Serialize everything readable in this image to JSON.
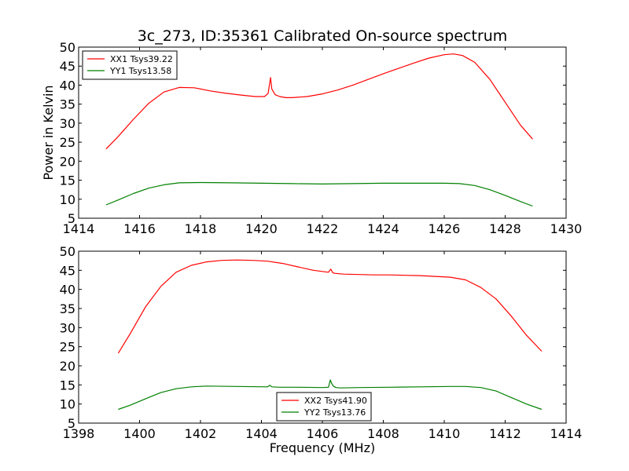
{
  "figure": {
    "title": "3c_273, ID:35361 Calibrated On-source spectrum"
  },
  "chart_data": [
    {
      "type": "line",
      "title": "3c_273, ID:35361 Calibrated On-source spectrum",
      "xlabel": "",
      "ylabel": "Power in Kelvin",
      "xlim": [
        1414,
        1430
      ],
      "ylim": [
        5,
        50
      ],
      "xticks": [
        "1414",
        "1416",
        "1418",
        "1420",
        "1422",
        "1424",
        "1426",
        "1428",
        "1430"
      ],
      "yticks": [
        "5",
        "10",
        "15",
        "20",
        "25",
        "30",
        "35",
        "40",
        "45",
        "50"
      ],
      "grid": false,
      "legend_position": "top-left",
      "series": [
        {
          "name": "XX1 Tsys39.22",
          "color": "#ff0000",
          "x": [
            1414.9,
            1415.3,
            1415.8,
            1416.3,
            1416.8,
            1417.3,
            1417.8,
            1418.3,
            1418.8,
            1419.3,
            1419.8,
            1420.1,
            1420.22,
            1420.3,
            1420.34,
            1420.45,
            1420.6,
            1420.8,
            1421.0,
            1421.5,
            1422.0,
            1422.5,
            1423.0,
            1423.5,
            1424.0,
            1424.5,
            1425.0,
            1425.5,
            1426.0,
            1426.3,
            1426.6,
            1427.0,
            1427.5,
            1428.0,
            1428.5,
            1428.9
          ],
          "y": [
            23.2,
            26.5,
            31,
            35.2,
            38.2,
            39.4,
            39.3,
            38.5,
            37.9,
            37.4,
            37.0,
            37.0,
            37.8,
            42.0,
            39.0,
            37.5,
            37.0,
            36.7,
            36.7,
            37.0,
            37.7,
            38.7,
            40.0,
            41.5,
            43.0,
            44.4,
            45.8,
            47.1,
            48.0,
            48.2,
            47.8,
            46.0,
            41.5,
            35.5,
            29.5,
            25.8
          ]
        },
        {
          "name": "YY1 Tsys13.58",
          "color": "#008000",
          "x": [
            1414.9,
            1415.3,
            1415.8,
            1416.3,
            1416.8,
            1417.3,
            1418.0,
            1419.0,
            1420.0,
            1421.0,
            1422.0,
            1423.0,
            1424.0,
            1425.0,
            1426.0,
            1426.5,
            1427.0,
            1427.5,
            1428.0,
            1428.5,
            1428.9
          ],
          "y": [
            8.5,
            9.8,
            11.5,
            12.9,
            13.8,
            14.3,
            14.4,
            14.3,
            14.2,
            14.1,
            14.0,
            14.1,
            14.2,
            14.2,
            14.2,
            14.1,
            13.6,
            12.5,
            11.0,
            9.4,
            8.2
          ]
        }
      ]
    },
    {
      "type": "line",
      "title": "",
      "xlabel": "Frequency (MHz)",
      "ylabel": "",
      "xlim": [
        1398,
        1414
      ],
      "ylim": [
        5,
        50
      ],
      "xticks": [
        "1398",
        "1400",
        "1402",
        "1404",
        "1406",
        "1408",
        "1410",
        "1412",
        "1414"
      ],
      "yticks": [
        "5",
        "10",
        "15",
        "20",
        "25",
        "30",
        "35",
        "40",
        "45",
        "50"
      ],
      "grid": false,
      "legend_position": "bottom-center",
      "series": [
        {
          "name": "XX2 Tsys41.90",
          "color": "#ff0000",
          "x": [
            1399.3,
            1399.7,
            1400.2,
            1400.7,
            1401.2,
            1401.7,
            1402.2,
            1402.7,
            1403.2,
            1403.7,
            1404.2,
            1404.7,
            1405.2,
            1405.7,
            1406.2,
            1406.28,
            1406.34,
            1406.4,
            1406.7,
            1407.2,
            1407.7,
            1408.2,
            1408.7,
            1409.2,
            1409.7,
            1410.2,
            1410.7,
            1411.2,
            1411.7,
            1412.2,
            1412.7,
            1413.2
          ],
          "y": [
            23.3,
            28.5,
            35.5,
            40.8,
            44.5,
            46.3,
            47.2,
            47.6,
            47.7,
            47.6,
            47.4,
            46.8,
            45.9,
            45.0,
            44.5,
            45.3,
            44.4,
            44.2,
            44.0,
            43.9,
            43.8,
            43.8,
            43.7,
            43.6,
            43.4,
            43.2,
            42.5,
            40.5,
            37.5,
            33.0,
            28.0,
            23.8
          ]
        },
        {
          "name": "YY2 Tsys13.76",
          "color": "#008000",
          "x": [
            1399.3,
            1399.7,
            1400.2,
            1400.7,
            1401.2,
            1401.7,
            1402.2,
            1403.2,
            1404.2,
            1404.28,
            1404.34,
            1404.6,
            1405.2,
            1406.0,
            1406.2,
            1406.26,
            1406.3,
            1406.36,
            1406.45,
            1406.6,
            1407.2,
            1408.2,
            1409.2,
            1410.2,
            1410.7,
            1411.2,
            1411.7,
            1412.2,
            1412.7,
            1413.2
          ],
          "y": [
            8.6,
            9.7,
            11.4,
            13.0,
            14.0,
            14.5,
            14.7,
            14.6,
            14.5,
            14.9,
            14.5,
            14.4,
            14.4,
            14.3,
            14.4,
            16.3,
            15.5,
            14.7,
            14.3,
            14.2,
            14.3,
            14.4,
            14.5,
            14.6,
            14.6,
            14.3,
            13.4,
            11.7,
            10.0,
            8.6
          ]
        }
      ]
    }
  ]
}
